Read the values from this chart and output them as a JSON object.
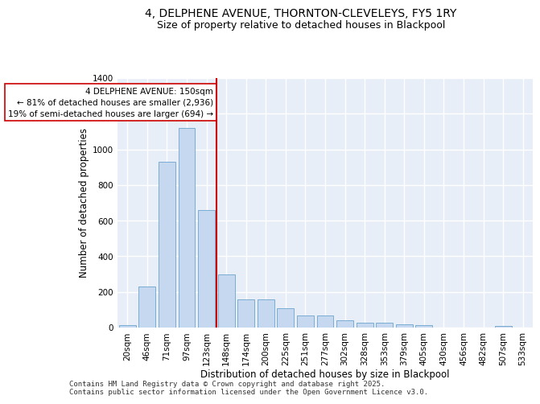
{
  "title_line1": "4, DELPHENE AVENUE, THORNTON-CLEVELEYS, FY5 1RY",
  "title_line2": "Size of property relative to detached houses in Blackpool",
  "xlabel": "Distribution of detached houses by size in Blackpool",
  "ylabel": "Number of detached properties",
  "categories": [
    "20sqm",
    "46sqm",
    "71sqm",
    "97sqm",
    "123sqm",
    "148sqm",
    "174sqm",
    "200sqm",
    "225sqm",
    "251sqm",
    "277sqm",
    "302sqm",
    "328sqm",
    "353sqm",
    "379sqm",
    "405sqm",
    "430sqm",
    "456sqm",
    "482sqm",
    "507sqm",
    "533sqm"
  ],
  "values": [
    15,
    230,
    930,
    1120,
    660,
    300,
    160,
    160,
    110,
    70,
    70,
    40,
    25,
    25,
    20,
    15,
    0,
    0,
    0,
    10,
    0
  ],
  "bar_color": "#c5d8f0",
  "bar_edge_color": "#7aadd4",
  "vline_color": "#cc0000",
  "annotation_text": "4 DELPHENE AVENUE: 150sqm\n← 81% of detached houses are smaller (2,936)\n19% of semi-detached houses are larger (694) →",
  "annotation_box_color": "#cc0000",
  "ylim": [
    0,
    1400
  ],
  "yticks": [
    0,
    200,
    400,
    600,
    800,
    1000,
    1200,
    1400
  ],
  "background_color": "#e8eef8",
  "grid_color": "#ffffff",
  "footer_text": "Contains HM Land Registry data © Crown copyright and database right 2025.\nContains public sector information licensed under the Open Government Licence v3.0.",
  "title_fontsize": 10,
  "subtitle_fontsize": 9,
  "xlabel_fontsize": 8.5,
  "ylabel_fontsize": 8.5,
  "tick_fontsize": 7.5,
  "annotation_fontsize": 7.5,
  "footer_fontsize": 6.5
}
